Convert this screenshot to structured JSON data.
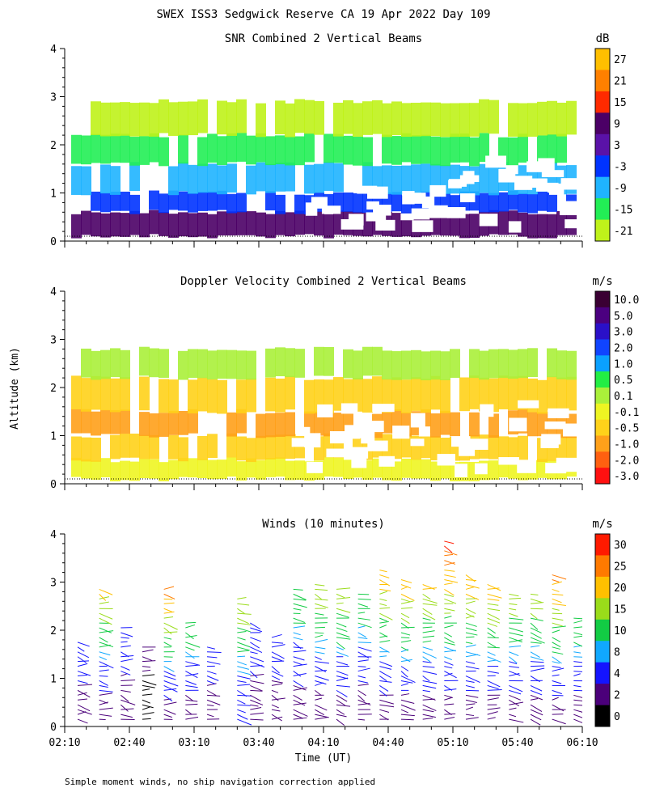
{
  "title": "SWEX ISS3 Sedgwick Reserve CA  19 Apr 2022 Day 109",
  "footnote": "Simple moment winds, no ship navigation correction applied",
  "shared_ylabel": "Altitude (km)",
  "shared_xlabel": "Time (UT)",
  "chart_data": [
    {
      "type": "heatmap",
      "title": "SNR Combined 2 Vertical Beams",
      "unit": "dB",
      "xlabel": "",
      "ylabel": "",
      "x_ticks": [],
      "y_ticks": [
        "0",
        "1",
        "2",
        "3",
        "4"
      ],
      "ylim": [
        0,
        4
      ],
      "colorbar": {
        "labels": [
          "27",
          "21",
          "15",
          "9",
          "3",
          "-3",
          "-9",
          "-15",
          "-21"
        ],
        "colors": [
          "#ffbf00",
          "#ff8000",
          "#ff2a00",
          "#4b0066",
          "#5a12a8",
          "#0033ff",
          "#1fb4ff",
          "#22ee55",
          "#bff21a"
        ]
      },
      "altitude_bands": [
        {
          "ymin": 0.1,
          "ymax": 0.6,
          "value": 9
        },
        {
          "ymin": 0.6,
          "ymax": 1.0,
          "value": -3
        },
        {
          "ymin": 1.0,
          "ymax": 1.6,
          "value": -9
        },
        {
          "ymin": 1.6,
          "ymax": 2.2,
          "value": -15
        },
        {
          "ymin": 2.2,
          "ymax": 2.9,
          "value": -21
        }
      ]
    },
    {
      "type": "heatmap",
      "title": "Doppler Velocity Combined 2 Vertical Beams",
      "unit": "m/s",
      "xlabel": "",
      "ylabel": "Altitude (km)",
      "x_ticks": [],
      "y_ticks": [
        "0",
        "1",
        "2",
        "3",
        "4"
      ],
      "ylim": [
        0,
        4
      ],
      "colorbar": {
        "labels": [
          "10.0",
          "5.0",
          "3.0",
          "2.0",
          "1.0",
          "0.5",
          "0.1",
          "-0.1",
          "-0.5",
          "-1.0",
          "-2.0",
          "-3.0"
        ],
        "colors": [
          "#3a0033",
          "#4b0080",
          "#2a10c8",
          "#1044ff",
          "#0aa0ff",
          "#22ee44",
          "#aaf03a",
          "#eef522",
          "#ffd21a",
          "#ffa01a",
          "#ff6010",
          "#ff1010"
        ]
      },
      "altitude_bands": [
        {
          "ymin": 0.1,
          "ymax": 0.5,
          "value": -0.1
        },
        {
          "ymin": 0.5,
          "ymax": 1.0,
          "value": -0.5
        },
        {
          "ymin": 1.0,
          "ymax": 1.5,
          "value": -1.0
        },
        {
          "ymin": 1.5,
          "ymax": 2.2,
          "value": -0.5
        },
        {
          "ymin": 2.2,
          "ymax": 2.8,
          "value": 0.1
        }
      ]
    },
    {
      "type": "scatter",
      "title": "Winds (10 minutes)",
      "unit": "m/s",
      "xlabel": "Time (UT)",
      "ylabel": "",
      "x_ticks": [
        "02:10",
        "02:40",
        "03:10",
        "03:40",
        "04:10",
        "04:40",
        "05:10",
        "05:40",
        "06:10"
      ],
      "y_ticks": [
        "0",
        "1",
        "2",
        "3",
        "4"
      ],
      "ylim": [
        0,
        4
      ],
      "colorbar": {
        "labels": [
          "30",
          "25",
          "20",
          "15",
          "10",
          "8",
          "4",
          "2",
          "0"
        ],
        "colors": [
          "#ff1a00",
          "#ff7a00",
          "#ffc000",
          "#9adc1a",
          "#12cc44",
          "#10a8ff",
          "#1414ff",
          "#4b007a",
          "#000000"
        ]
      },
      "profiles": [
        {
          "time": "02:16",
          "top": 1.8,
          "speed_low": 2,
          "speed_high": 8
        },
        {
          "time": "02:26",
          "top": 2.9,
          "speed_low": 2,
          "speed_high": 22
        },
        {
          "time": "02:36",
          "top": 2.1,
          "speed_low": 2,
          "speed_high": 8
        },
        {
          "time": "02:46",
          "top": 1.7,
          "speed_low": 0,
          "speed_high": 4
        },
        {
          "time": "02:56",
          "top": 2.9,
          "speed_low": 2,
          "speed_high": 28
        },
        {
          "time": "03:06",
          "top": 2.2,
          "speed_low": 2,
          "speed_high": 15
        },
        {
          "time": "03:16",
          "top": 1.7,
          "speed_low": 2,
          "speed_high": 8
        },
        {
          "time": "03:30",
          "top": 2.7,
          "speed_low": 4,
          "speed_high": 20
        },
        {
          "time": "03:36",
          "top": 2.2,
          "speed_low": 2,
          "speed_high": 8
        },
        {
          "time": "03:46",
          "top": 1.9,
          "speed_low": 2,
          "speed_high": 8
        },
        {
          "time": "03:56",
          "top": 2.9,
          "speed_low": 2,
          "speed_high": 15
        },
        {
          "time": "04:06",
          "top": 3.0,
          "speed_low": 2,
          "speed_high": 20
        },
        {
          "time": "04:16",
          "top": 2.9,
          "speed_low": 2,
          "speed_high": 20
        },
        {
          "time": "04:26",
          "top": 2.8,
          "speed_low": 2,
          "speed_high": 15
        },
        {
          "time": "04:36",
          "top": 3.3,
          "speed_low": 2,
          "speed_high": 25
        },
        {
          "time": "04:46",
          "top": 3.1,
          "speed_low": 2,
          "speed_high": 25
        },
        {
          "time": "04:56",
          "top": 3.0,
          "speed_low": 2,
          "speed_high": 22
        },
        {
          "time": "05:06",
          "top": 3.9,
          "speed_low": 2,
          "speed_high": 32
        },
        {
          "time": "05:16",
          "top": 3.2,
          "speed_low": 2,
          "speed_high": 25
        },
        {
          "time": "05:26",
          "top": 3.0,
          "speed_low": 2,
          "speed_high": 25
        },
        {
          "time": "05:36",
          "top": 2.8,
          "speed_low": 2,
          "speed_high": 20
        },
        {
          "time": "05:46",
          "top": 2.8,
          "speed_low": 2,
          "speed_high": 20
        },
        {
          "time": "05:56",
          "top": 3.2,
          "speed_low": 2,
          "speed_high": 28
        },
        {
          "time": "06:06",
          "top": 2.3,
          "speed_low": 2,
          "speed_high": 15
        }
      ]
    }
  ]
}
